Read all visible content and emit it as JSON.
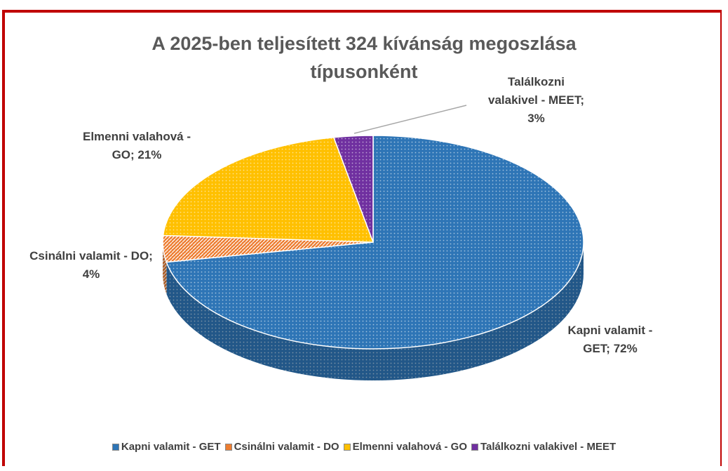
{
  "chart_data": {
    "type": "pie3d",
    "title": "A 2025-ben teljesített 324 kívánság megoszlása típusonként",
    "categories": [
      "Kapni valamit - GET",
      "Csinálni valamit - DO",
      "Elmenni valahová - GO",
      "Találkozni valakivel - MEET"
    ],
    "values": [
      72,
      4,
      21,
      3
    ],
    "value_labels": [
      "Kapni valamit - GET; 72%",
      "Csinálni valamit - DO; 4%",
      "Elmenni valahová - GO; 21%",
      "Találkozni valakivel - MEET; 3%"
    ],
    "colors": [
      "#2e75b6",
      "#ed7d31",
      "#ffc000",
      "#7030a0"
    ],
    "legend": "bottom"
  }
}
